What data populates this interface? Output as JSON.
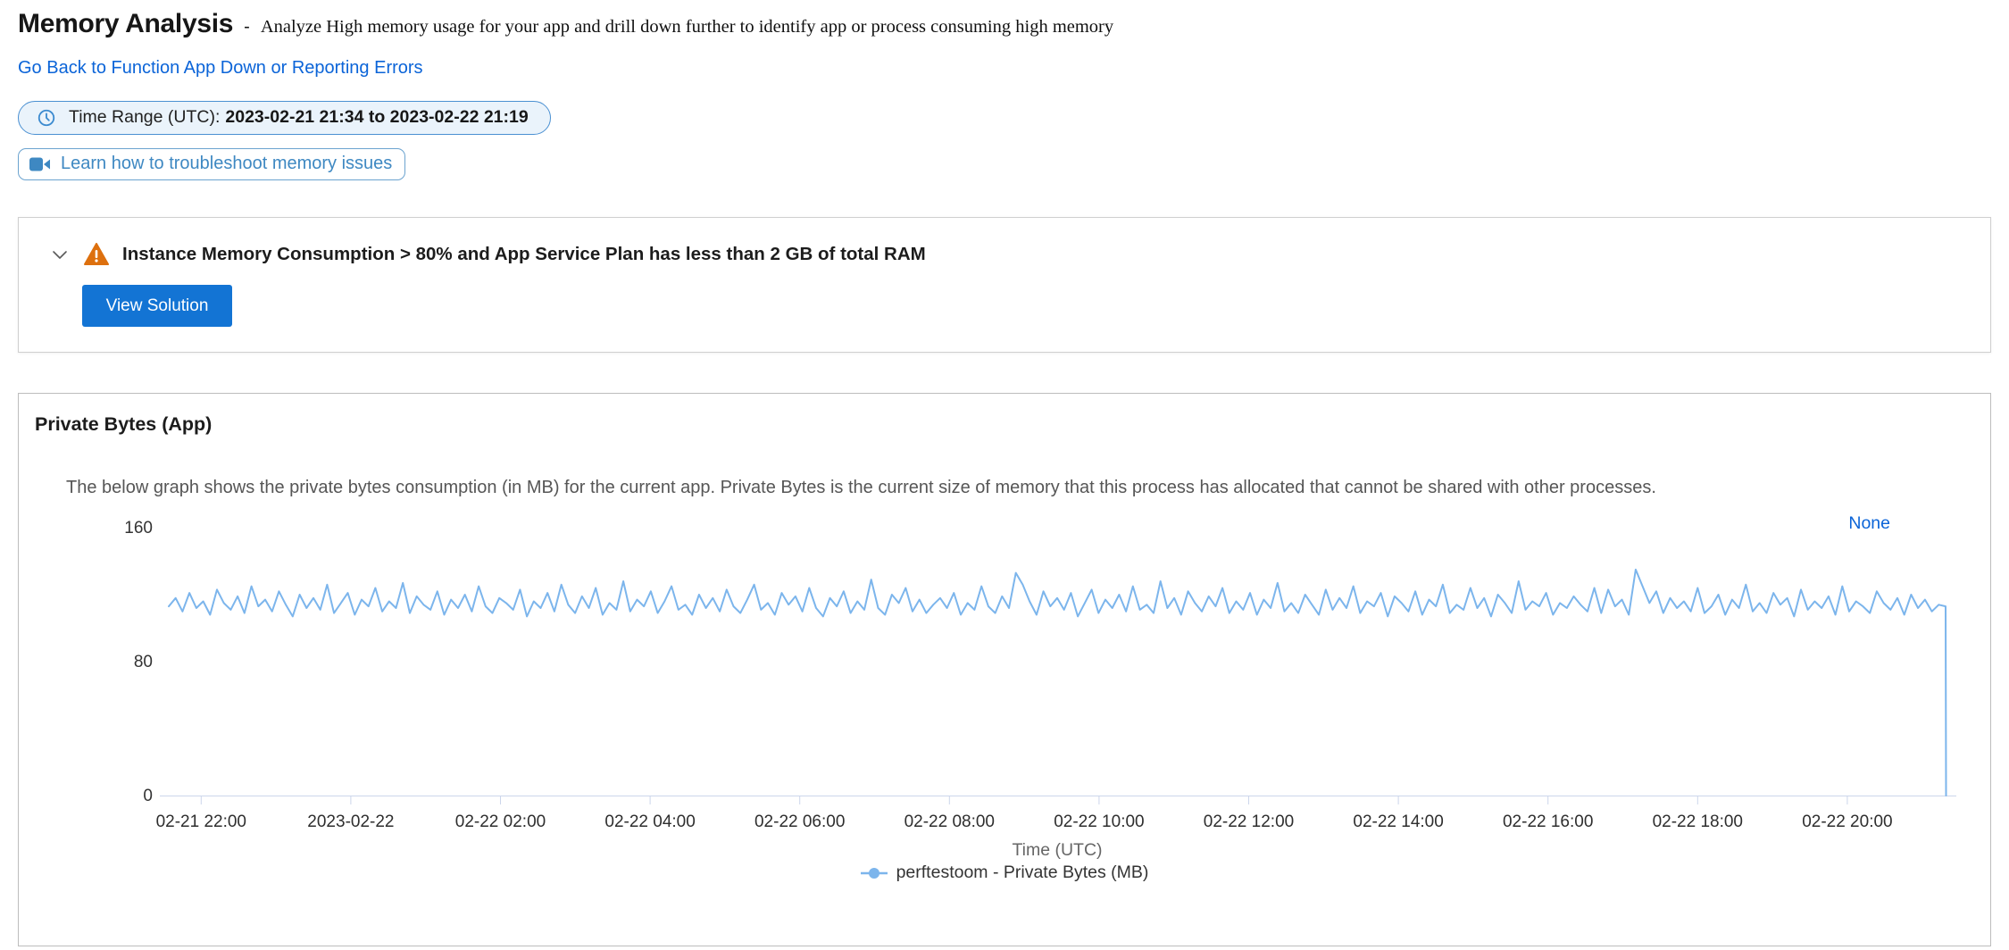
{
  "header": {
    "title": "Memory Analysis",
    "separator": "-",
    "subtitle": "Analyze High memory usage for your app and drill down further to identify app or process consuming high memory",
    "back_link": "Go Back to Function App Down or Reporting Errors",
    "time_range_label": "Time Range (UTC):",
    "time_range_value": "2023-02-21 21:34 to 2023-02-22 21:19",
    "learn_button": "Learn how to troubleshoot memory issues"
  },
  "insight": {
    "title": "Instance Memory Consumption > 80% and App Service Plan has less than 2 GB of total RAM",
    "action_label": "View Solution"
  },
  "chart_panel": {
    "title": "Private Bytes (App)",
    "description": "The below graph shows the private bytes consumption (in MB) for the current app. Private Bytes is the current size of memory that this process has allocated that cannot be shared with other processes.",
    "none_link": "None"
  },
  "chart_data": {
    "type": "line",
    "title": "",
    "xlabel": "Time (UTC)",
    "ylabel": "",
    "ylim": [
      0,
      160
    ],
    "yticks": [
      0,
      80,
      160
    ],
    "x_range": "2023-02-21 21:34 to 2023-02-22 21:19",
    "xticklabels": [
      "02-21 22:00",
      "2023-02-22",
      "02-22 02:00",
      "02-22 04:00",
      "02-22 06:00",
      "02-22 08:00",
      "02-22 10:00",
      "02-22 12:00",
      "02-22 14:00",
      "02-22 16:00",
      "02-22 18:00",
      "02-22 20:00"
    ],
    "grid": false,
    "legend_position": "bottom",
    "series": [
      {
        "name": "perftestoom - Private Bytes (MB)",
        "color": "#7cb5ec",
        "values": [
          113,
          118,
          110,
          121,
          112,
          116,
          108,
          123,
          115,
          111,
          119,
          109,
          125,
          113,
          117,
          110,
          122,
          114,
          107,
          120,
          112,
          118,
          111,
          126,
          109,
          115,
          121,
          108,
          117,
          113,
          124,
          110,
          116,
          112,
          127,
          109,
          119,
          114,
          111,
          122,
          108,
          117,
          112,
          120,
          110,
          125,
          113,
          109,
          118,
          115,
          111,
          123,
          107,
          116,
          112,
          121,
          110,
          126,
          114,
          109,
          119,
          112,
          124,
          108,
          115,
          111,
          128,
          110,
          117,
          113,
          122,
          109,
          116,
          125,
          111,
          114,
          108,
          120,
          112,
          118,
          110,
          123,
          113,
          109,
          117,
          126,
          111,
          115,
          108,
          121,
          114,
          119,
          110,
          124,
          112,
          107,
          118,
          113,
          122,
          109,
          116,
          111,
          129,
          112,
          108,
          120,
          115,
          124,
          110,
          117,
          109,
          114,
          118,
          112,
          121,
          108,
          115,
          111,
          125,
          113,
          109,
          119,
          112,
          133,
          126,
          116,
          108,
          122,
          113,
          118,
          111,
          121,
          107,
          115,
          123,
          109,
          117,
          112,
          120,
          110,
          125,
          111,
          114,
          109,
          128,
          112,
          118,
          108,
          122,
          115,
          110,
          119,
          113,
          124,
          109,
          116,
          111,
          121,
          108,
          117,
          112,
          127,
          110,
          115,
          109,
          120,
          114,
          108,
          123,
          111,
          118,
          112,
          125,
          109,
          116,
          113,
          121,
          107,
          119,
          115,
          110,
          122,
          108,
          117,
          113,
          126,
          109,
          114,
          111,
          124,
          112,
          118,
          107,
          120,
          115,
          109,
          128,
          111,
          116,
          113,
          121,
          108,
          115,
          112,
          119,
          114,
          110,
          124,
          109,
          123,
          113,
          117,
          108,
          135,
          125,
          115,
          122,
          109,
          118,
          112,
          116,
          110,
          124,
          109,
          113,
          120,
          108,
          117,
          112,
          126,
          110,
          115,
          109,
          121,
          114,
          118,
          107,
          123,
          111,
          116,
          112,
          119,
          108,
          125,
          110,
          116,
          113,
          109,
          122,
          115,
          111,
          118,
          108,
          120,
          112,
          117,
          110,
          114,
          113,
          0
        ]
      }
    ]
  },
  "colors": {
    "link_blue": "#0b64d8",
    "accent_button_blue": "#1374d4",
    "pill_border_blue": "#4a90d2",
    "pill_background": "#eaf3fb",
    "warning_orange": "#dd700e",
    "chart_line_blue": "#7cb5ec",
    "axis_line": "#ccd6eb"
  }
}
